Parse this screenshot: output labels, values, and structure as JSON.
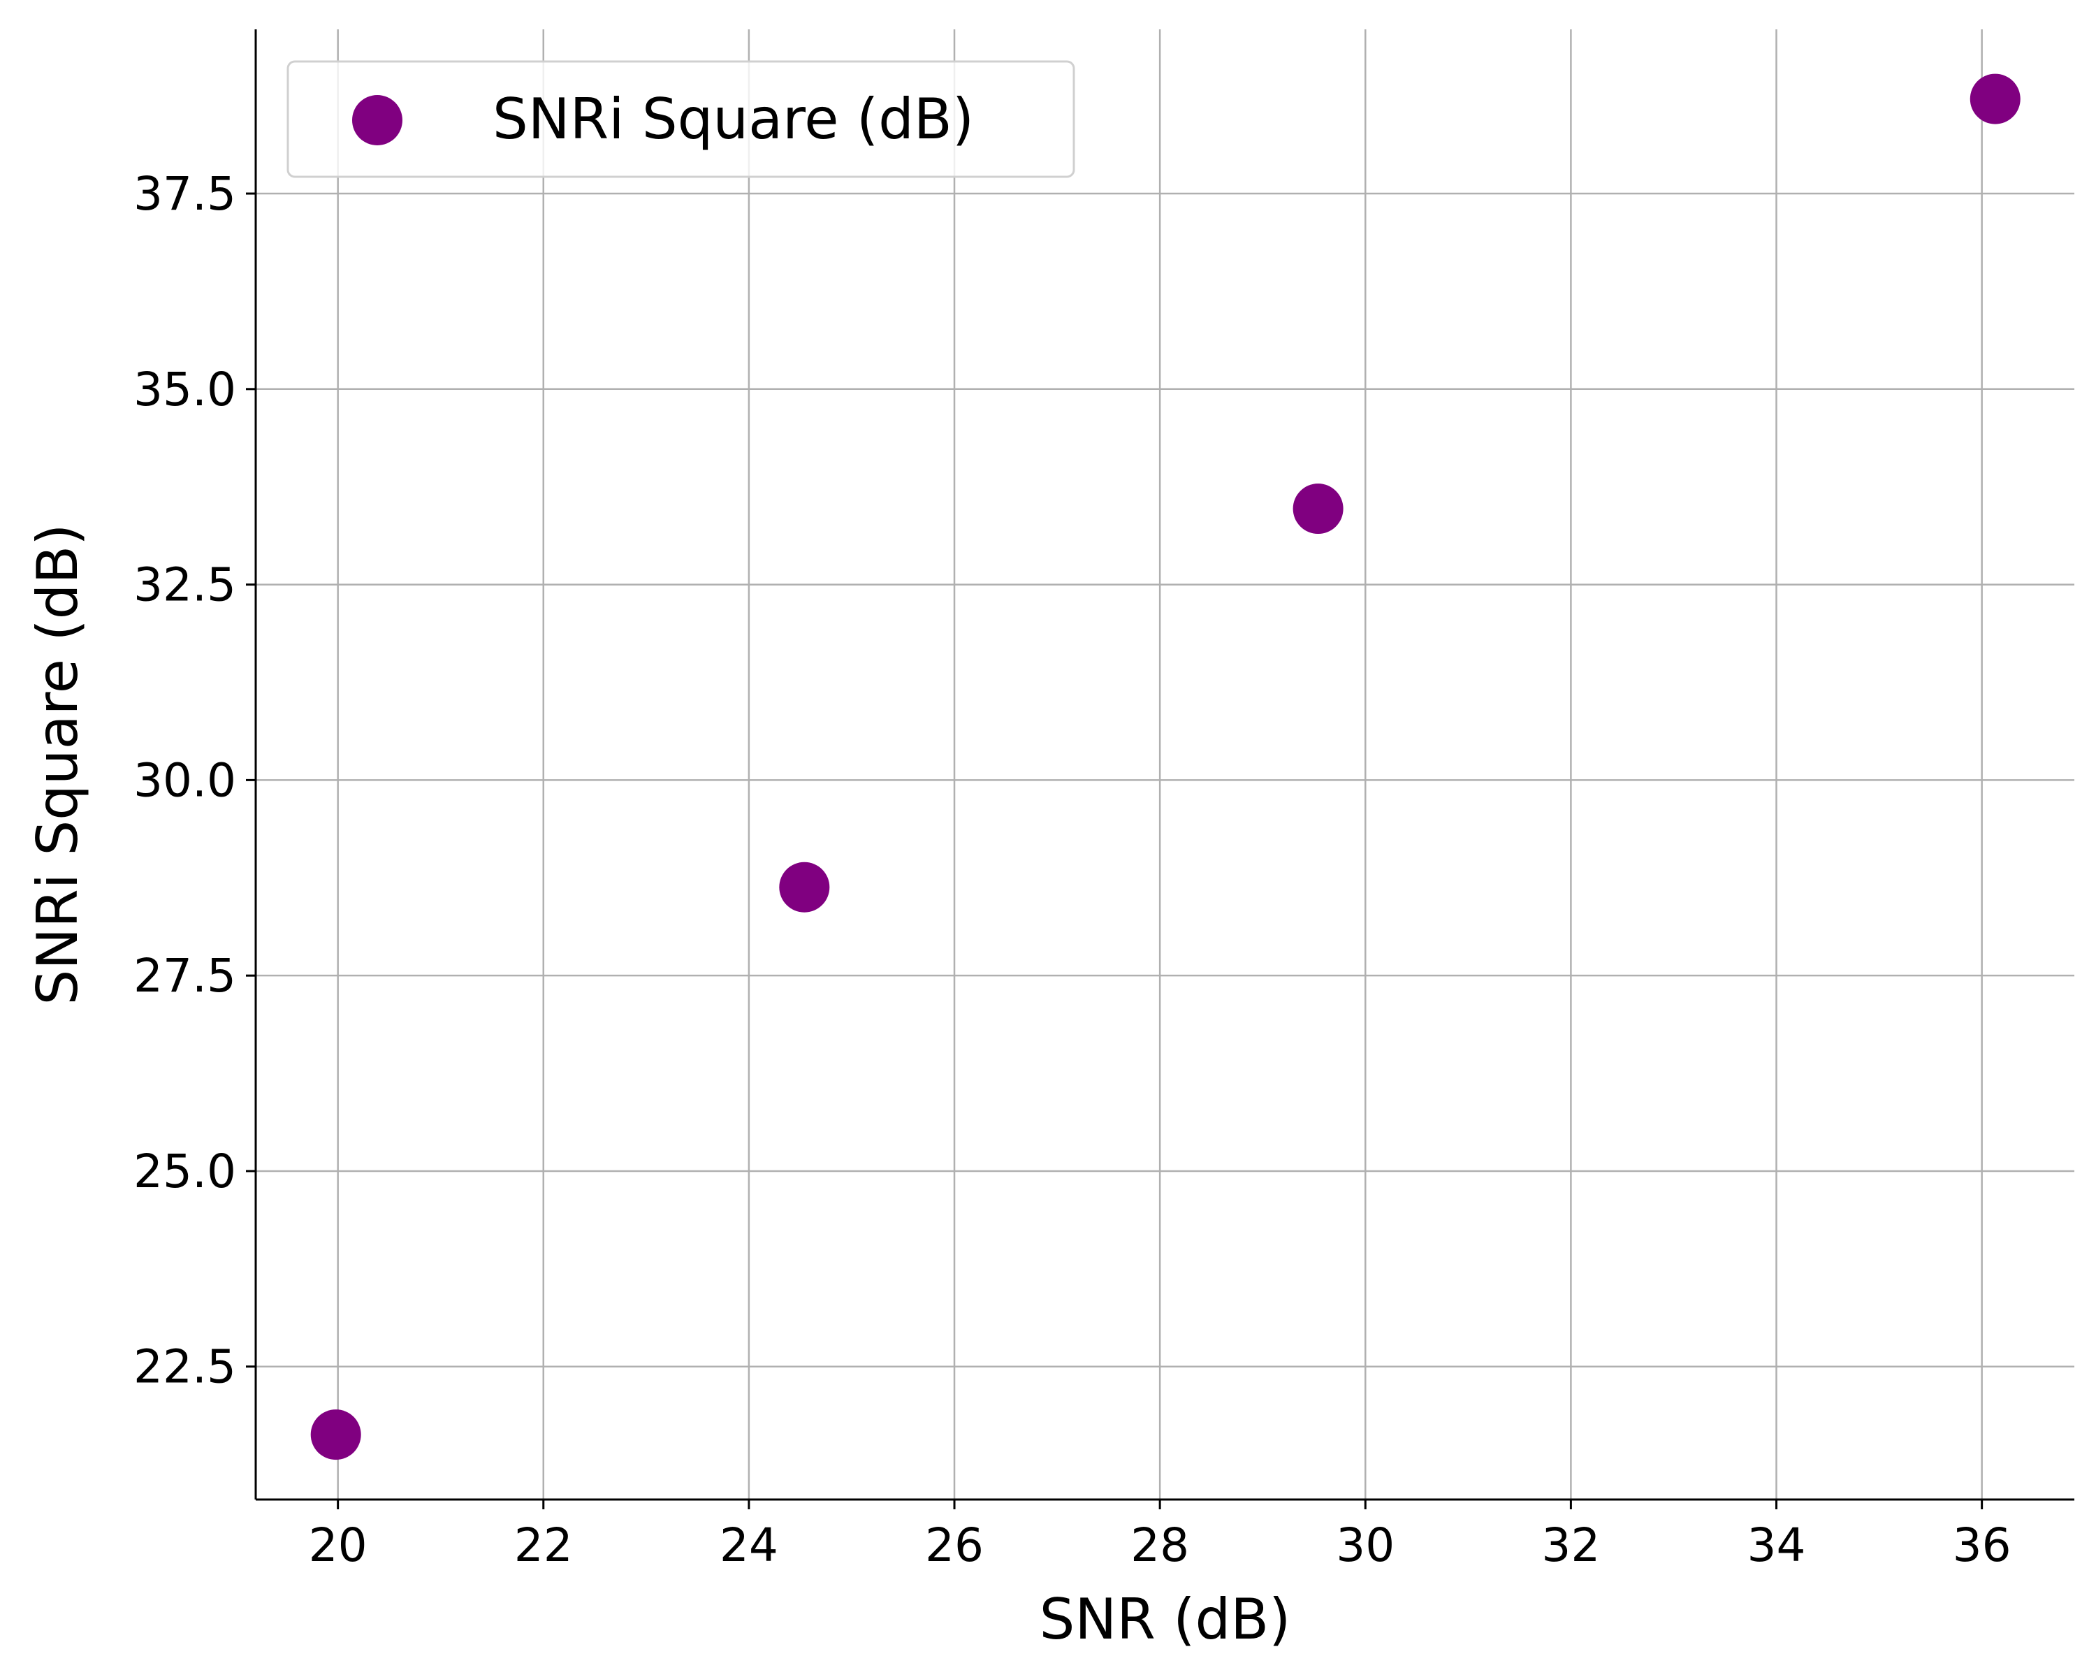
{
  "chart_data": {
    "type": "scatter",
    "title": "",
    "xlabel": "SNR (dB)",
    "ylabel": "SNRi Square (dB)",
    "xlim": [
      19.2,
      36.9
    ],
    "ylim": [
      20.8,
      39.6
    ],
    "xticks": [
      20,
      22,
      24,
      26,
      28,
      30,
      32,
      34,
      36
    ],
    "yticks": [
      22.5,
      25.0,
      27.5,
      30.0,
      32.5,
      35.0,
      37.5
    ],
    "xtick_labels": [
      "20",
      "22",
      "24",
      "26",
      "28",
      "30",
      "32",
      "34",
      "36"
    ],
    "ytick_labels": [
      "22.5",
      "25.0",
      "27.5",
      "30.0",
      "32.5",
      "35.0",
      "37.5"
    ],
    "grid": true,
    "legend_position": "top-left",
    "series": [
      {
        "name": "SNRi Square (dB)",
        "color": "#800080",
        "x": [
          19.98,
          24.54,
          29.54,
          36.13
        ],
        "y": [
          21.63,
          28.63,
          33.47,
          38.71
        ]
      }
    ]
  }
}
